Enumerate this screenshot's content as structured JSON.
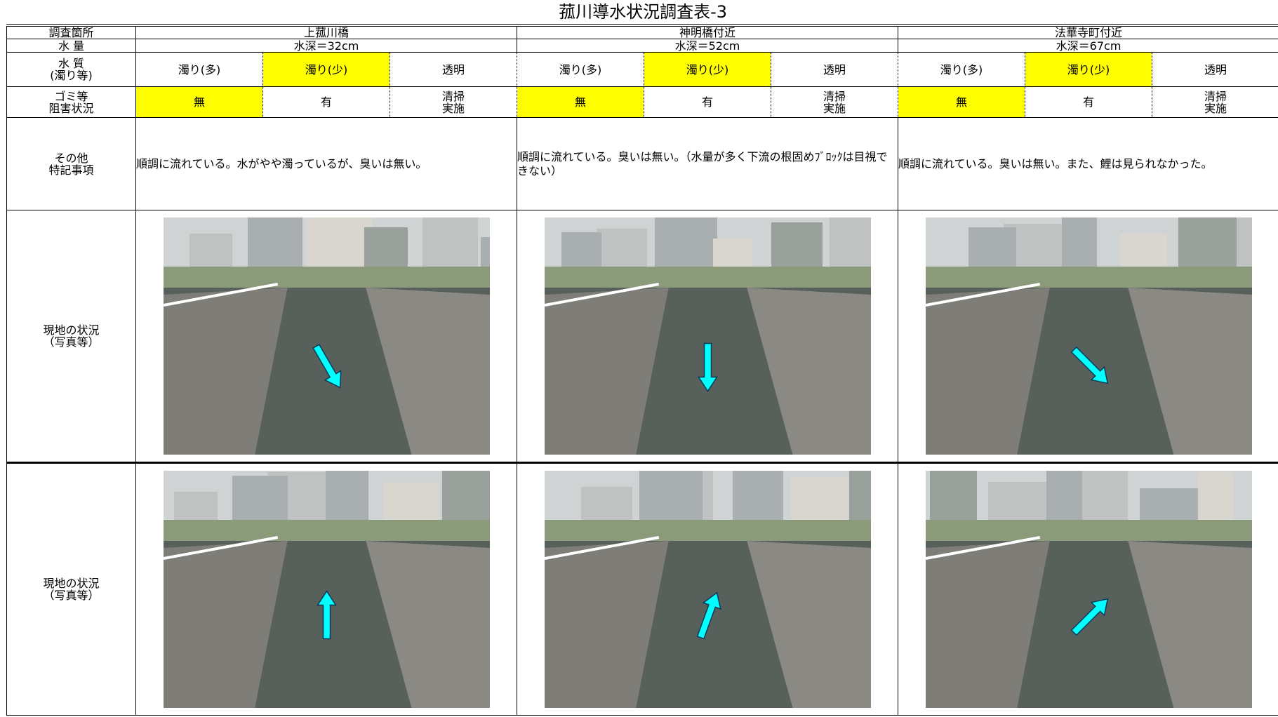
{
  "title": "菰川導水状況調査表-3",
  "row_labels": {
    "location": "調査箇所",
    "amount": "水 量",
    "quality": [
      "水 質",
      "(濁り等)"
    ],
    "debris": [
      "ゴミ等",
      "阻害状況"
    ],
    "notes": [
      "その他",
      "特記事項"
    ],
    "photos": [
      [
        "現地の状況",
        "（写真等）"
      ],
      [
        "現地の状況",
        "（写真等）"
      ]
    ]
  },
  "sites": [
    {
      "name": "上菰川橋",
      "depth": "水深＝32cm",
      "quality": {
        "options": [
          "濁り(多)",
          "濁り(少)",
          "透明"
        ],
        "selected": 1
      },
      "debris": {
        "options": [
          "無",
          "有",
          [
            "清掃",
            "実施"
          ]
        ],
        "selected": 0
      },
      "notes": "順調に流れている。水がやや濁っているが、臭いは無い。"
    },
    {
      "name": "神明橋付近",
      "depth": "水深＝52cm",
      "quality": {
        "options": [
          "濁り(多)",
          "濁り(少)",
          "透明"
        ],
        "selected": 1
      },
      "debris": {
        "options": [
          "無",
          "有",
          [
            "清掃",
            "実施"
          ]
        ],
        "selected": 0
      },
      "notes": "順調に流れている。臭いは無い。（水量が多く下流の根固めﾌﾞﾛｯｸは目視できない）"
    },
    {
      "name": "法華寺町付近",
      "depth": "水深＝67cm",
      "quality": {
        "options": [
          "濁り(多)",
          "濁り(少)",
          "透明"
        ],
        "selected": 1
      },
      "debris": {
        "options": [
          "無",
          "有",
          [
            "清掃",
            "実施"
          ]
        ],
        "selected": 0
      },
      "notes": "順調に流れている。臭いは無い。また、鯉は見られなかった。"
    }
  ]
}
